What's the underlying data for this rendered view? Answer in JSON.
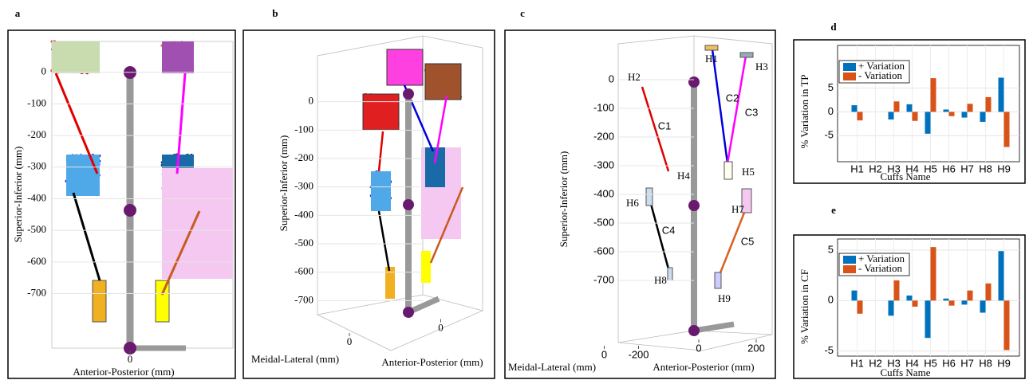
{
  "chart_data": [
    {
      "type": "scatter3d",
      "label": "a",
      "ylabel": "Superior-Inferior (mm)",
      "xlabel": "Anterior-Posterior (mm)",
      "ylim": [
        -870,
        100
      ],
      "yticks": [
        -700,
        -600,
        -500,
        -400,
        -300,
        -200,
        -100,
        0
      ],
      "xlim": [
        -190,
        250
      ],
      "xticks": [
        0
      ],
      "grid": true
    },
    {
      "type": "scatter3d",
      "label": "b",
      "ylabel": "Superior-Inferior (mm)",
      "xlabel": "Anterior-Posterior (mm)",
      "zlabel": "Meidal-Lateral (mm)",
      "ylim": [
        -800,
        100
      ],
      "yticks": [
        -700,
        -600,
        -500,
        -400,
        -300,
        -200,
        -100,
        0
      ],
      "xlim": [
        -200,
        200
      ],
      "xticks": [
        0
      ],
      "zlim": [
        -200,
        200
      ],
      "zticks": [
        0
      ],
      "grid": true
    },
    {
      "type": "scatter3d",
      "label": "c",
      "ylabel": "Superior-Inferior (mm)",
      "xlabel": "Anterior-Posterior (mm)",
      "zlabel": "Meidal-Lateral (mm)",
      "ylim": [
        -900,
        100
      ],
      "yticks": [
        -700,
        -600,
        -500,
        -400,
        -300,
        -200,
        -100,
        0
      ],
      "xlim": [
        -100,
        250
      ],
      "xticks": [
        0,
        200
      ],
      "zlim": [
        -300,
        100
      ],
      "zticks": [
        0,
        -200
      ],
      "grid": true,
      "annotations": [
        {
          "text": "H1",
          "color": "#000000"
        },
        {
          "text": "H2",
          "color": "#000000"
        },
        {
          "text": "H3",
          "color": "#000000"
        },
        {
          "text": "H4",
          "color": "#000000"
        },
        {
          "text": "H5",
          "color": "#000000"
        },
        {
          "text": "H6",
          "color": "#000000"
        },
        {
          "text": "H7",
          "color": "#000000"
        },
        {
          "text": "H8",
          "color": "#000000"
        },
        {
          "text": "H9",
          "color": "#000000"
        },
        {
          "text": "C1",
          "color": "#e00000"
        },
        {
          "text": "C2",
          "color": "#0000e0"
        },
        {
          "text": "C3",
          "color": "#ff00ff"
        },
        {
          "text": "C4",
          "color": "#000000"
        },
        {
          "text": "C5",
          "color": "#d9621e"
        }
      ]
    },
    {
      "type": "bar",
      "label": "d",
      "ylabel": "% Variation in TP",
      "xlabel": "Cuffs Name",
      "categories": [
        "H1",
        "H2",
        "H3",
        "H4",
        "H5",
        "H6",
        "H7",
        "H8",
        "H9"
      ],
      "series": [
        {
          "name": "+ Variation",
          "color": "#0072bd",
          "values": [
            1.4,
            0,
            -1.6,
            1.6,
            -4.6,
            0.5,
            -1.2,
            -2.1,
            7.2
          ]
        },
        {
          "name": "- Variation",
          "color": "#d95319",
          "values": [
            -1.8,
            0,
            2.2,
            -1.9,
            7.1,
            -0.9,
            1.7,
            3.1,
            -7.4
          ]
        }
      ],
      "ylim": [
        -10.5,
        14
      ],
      "yticks": [
        -5,
        0,
        5
      ],
      "grid": true
    },
    {
      "type": "bar",
      "label": "e",
      "ylabel": "% Variation in CF",
      "xlabel": "Cuffs Name",
      "categories": [
        "H1",
        "H2",
        "H3",
        "H4",
        "H5",
        "H6",
        "H7",
        "H8",
        "H9"
      ],
      "series": [
        {
          "name": "+ Variation",
          "color": "#0072bd",
          "values": [
            1.0,
            0,
            -1.5,
            0.5,
            -3.7,
            0.2,
            -0.4,
            -1.2,
            4.9
          ]
        },
        {
          "name": "- Variation",
          "color": "#d95319",
          "values": [
            -1.3,
            0,
            2.0,
            -0.6,
            5.3,
            -0.5,
            1.0,
            1.7,
            -4.9
          ]
        }
      ],
      "ylim": [
        -5.5,
        6.1
      ],
      "yticks": [
        -5,
        0,
        5
      ],
      "grid": true
    }
  ]
}
